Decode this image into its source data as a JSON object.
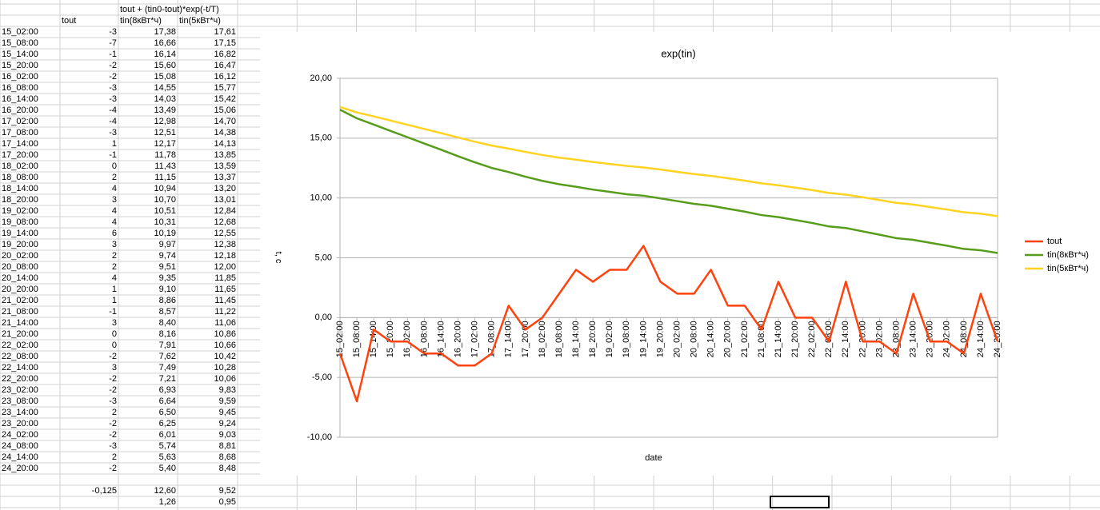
{
  "sheet": {
    "formula": "tout + (tin0-tout)*exp(-t/T)",
    "footer": [
      [
        "-0,125",
        "12,60",
        "9,52"
      ],
      [
        "1,26",
        "0,95"
      ]
    ]
  },
  "chart_data": {
    "type": "line",
    "title": "exp(tin)",
    "xlabel": "date",
    "ylabel": "t, c",
    "categories": [
      "15_02:00",
      "15_08:00",
      "15_14:00",
      "15_20:00",
      "16_02:00",
      "16_08:00",
      "16_14:00",
      "16_20:00",
      "17_02:00",
      "17_08:00",
      "17_14:00",
      "17_20:00",
      "18_02:00",
      "18_08:00",
      "18_14:00",
      "18_20:00",
      "19_02:00",
      "19_08:00",
      "19_14:00",
      "19_20:00",
      "20_02:00",
      "20_08:00",
      "20_14:00",
      "20_20:00",
      "21_02:00",
      "21_08:00",
      "21_14:00",
      "21_20:00",
      "22_02:00",
      "22_08:00",
      "22_14:00",
      "22_20:00",
      "23_02:00",
      "23_08:00",
      "23_14:00",
      "23_20:00",
      "24_02:00",
      "24_08:00",
      "24_14:00",
      "24_20:00"
    ],
    "series": [
      {
        "name": "tout",
        "color": "#ff420e",
        "values": [
          -3,
          -7,
          -1,
          -2,
          -2,
          -3,
          -3,
          -4,
          -4,
          -3,
          1,
          -1,
          0,
          2,
          4,
          3,
          4,
          4,
          6,
          3,
          2,
          2,
          4,
          1,
          1,
          -1,
          3,
          0,
          0,
          -2,
          3,
          -2,
          -2,
          -3,
          2,
          -2,
          -2,
          -3,
          2,
          -2
        ]
      },
      {
        "name": "tin(8кВт*ч)",
        "color": "#579d1c",
        "values": [
          17.38,
          16.66,
          16.14,
          15.6,
          15.08,
          14.55,
          14.03,
          13.49,
          12.98,
          12.51,
          12.17,
          11.78,
          11.43,
          11.15,
          10.94,
          10.7,
          10.51,
          10.31,
          10.19,
          9.97,
          9.74,
          9.51,
          9.35,
          9.1,
          8.86,
          8.57,
          8.4,
          8.16,
          7.91,
          7.62,
          7.49,
          7.21,
          6.93,
          6.64,
          6.5,
          6.25,
          6.01,
          5.74,
          5.63,
          5.4
        ],
        "value_labels": [
          "17,38",
          "16,66",
          "16,14",
          "15,60",
          "15,08",
          "14,55",
          "14,03",
          "13,49",
          "12,98",
          "12,51",
          "12,17",
          "11,78",
          "11,43",
          "11,15",
          "10,94",
          "10,70",
          "10,51",
          "10,31",
          "10,19",
          "9,97",
          "9,74",
          "9,51",
          "9,35",
          "9,10",
          "8,86",
          "8,57",
          "8,40",
          "8,16",
          "7,91",
          "7,62",
          "7,49",
          "7,21",
          "6,93",
          "6,64",
          "6,50",
          "6,25",
          "6,01",
          "5,74",
          "5,63",
          "5,40"
        ]
      },
      {
        "name": "tin(5кВт*ч)",
        "color": "#ffd320",
        "values": [
          17.61,
          17.15,
          16.82,
          16.47,
          16.12,
          15.77,
          15.42,
          15.06,
          14.7,
          14.38,
          14.13,
          13.85,
          13.59,
          13.37,
          13.2,
          13.01,
          12.84,
          12.68,
          12.55,
          12.38,
          12.18,
          12.0,
          11.85,
          11.65,
          11.45,
          11.22,
          11.06,
          10.86,
          10.66,
          10.42,
          10.28,
          10.06,
          9.83,
          9.59,
          9.45,
          9.24,
          9.03,
          8.81,
          8.68,
          8.48
        ],
        "value_labels": [
          "17,61",
          "17,15",
          "16,82",
          "16,47",
          "16,12",
          "15,77",
          "15,42",
          "15,06",
          "14,70",
          "14,38",
          "14,13",
          "13,85",
          "13,59",
          "13,37",
          "13,20",
          "13,01",
          "12,84",
          "12,68",
          "12,55",
          "12,38",
          "12,18",
          "12,00",
          "11,85",
          "11,65",
          "11,45",
          "11,22",
          "11,06",
          "10,86",
          "10,66",
          "10,42",
          "10,28",
          "10,06",
          "9,83",
          "9,59",
          "9,45",
          "9,24",
          "9,03",
          "8,81",
          "8,68",
          "8,48"
        ]
      }
    ],
    "ylim": [
      -10,
      20
    ],
    "yticks": [
      {
        "value": -10,
        "label": "-10,00"
      },
      {
        "value": -5,
        "label": "-5,00"
      },
      {
        "value": 0,
        "label": "0,00"
      },
      {
        "value": 5,
        "label": "5,00"
      },
      {
        "value": 10,
        "label": "10,00"
      },
      {
        "value": 15,
        "label": "15,00"
      },
      {
        "value": 20,
        "label": "20,00"
      }
    ],
    "grid": true,
    "legend": "right"
  }
}
